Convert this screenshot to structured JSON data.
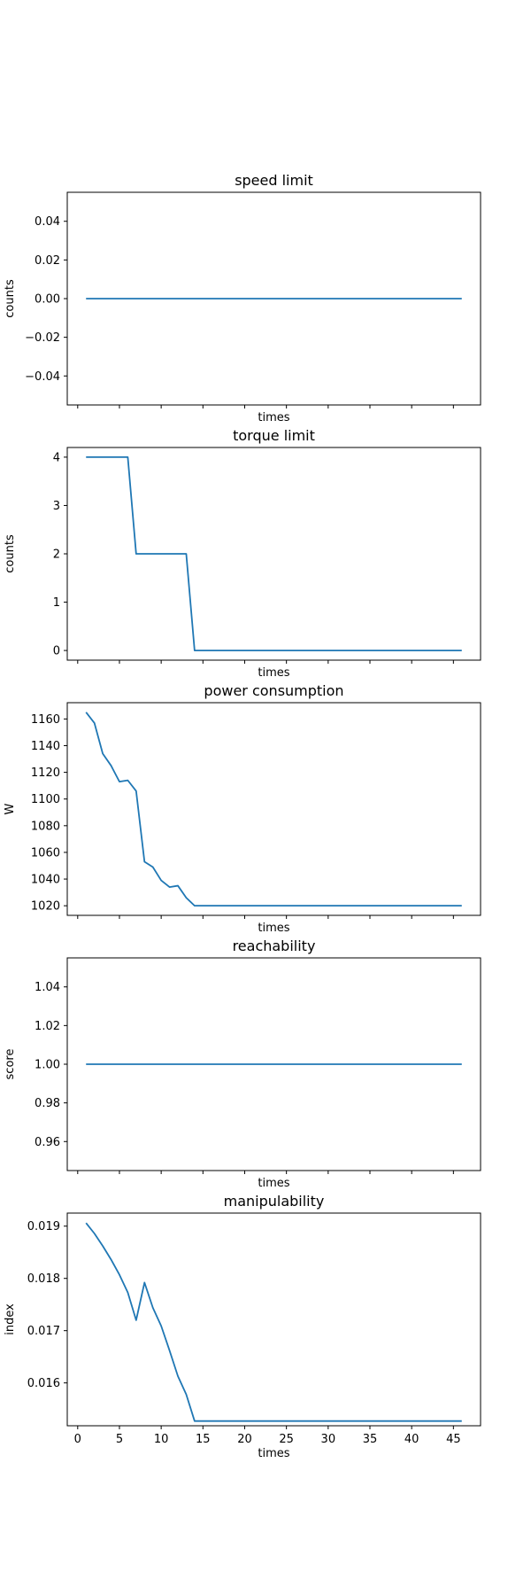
{
  "series_color": "#1f77b4",
  "shared_x": {
    "xlim": [
      -1.25,
      48.25
    ],
    "xticks": [
      0,
      5,
      10,
      15,
      20,
      25,
      30,
      35,
      40,
      45
    ]
  },
  "chart_data": [
    {
      "type": "line",
      "title": "speed limit",
      "xlabel": "times",
      "ylabel": "counts",
      "ylim": [
        -0.055,
        0.055
      ],
      "yticks": [
        -0.04,
        -0.02,
        0.0,
        0.02,
        0.04
      ],
      "ytick_labels": [
        "−0.04",
        "−0.02",
        "0.00",
        "0.02",
        "0.04"
      ],
      "show_xtick_labels": false,
      "x": [
        1,
        2,
        3,
        4,
        5,
        6,
        7,
        8,
        9,
        10,
        11,
        12,
        13,
        14,
        15,
        16,
        17,
        18,
        19,
        20,
        21,
        22,
        23,
        24,
        25,
        26,
        27,
        28,
        29,
        30,
        31,
        32,
        33,
        34,
        35,
        36,
        37,
        38,
        39,
        40,
        41,
        42,
        43,
        44,
        45,
        46
      ],
      "y": [
        0,
        0,
        0,
        0,
        0,
        0,
        0,
        0,
        0,
        0,
        0,
        0,
        0,
        0,
        0,
        0,
        0,
        0,
        0,
        0,
        0,
        0,
        0,
        0,
        0,
        0,
        0,
        0,
        0,
        0,
        0,
        0,
        0,
        0,
        0,
        0,
        0,
        0,
        0,
        0,
        0,
        0,
        0,
        0,
        0,
        0
      ]
    },
    {
      "type": "line",
      "title": "torque limit",
      "xlabel": "times",
      "ylabel": "counts",
      "ylim": [
        -0.2,
        4.2
      ],
      "yticks": [
        0,
        1,
        2,
        3,
        4
      ],
      "ytick_labels": [
        "0",
        "1",
        "2",
        "3",
        "4"
      ],
      "show_xtick_labels": false,
      "x": [
        1,
        2,
        3,
        4,
        5,
        6,
        7,
        8,
        9,
        10,
        11,
        12,
        13,
        14,
        15,
        16,
        17,
        18,
        19,
        20,
        21,
        22,
        23,
        24,
        25,
        26,
        27,
        28,
        29,
        30,
        31,
        32,
        33,
        34,
        35,
        36,
        37,
        38,
        39,
        40,
        41,
        42,
        43,
        44,
        45,
        46
      ],
      "y": [
        4,
        4,
        4,
        4,
        4,
        4,
        2,
        2,
        2,
        2,
        2,
        2,
        2,
        0,
        0,
        0,
        0,
        0,
        0,
        0,
        0,
        0,
        0,
        0,
        0,
        0,
        0,
        0,
        0,
        0,
        0,
        0,
        0,
        0,
        0,
        0,
        0,
        0,
        0,
        0,
        0,
        0,
        0,
        0,
        0,
        0
      ]
    },
    {
      "type": "line",
      "title": "power consumption",
      "xlabel": "times",
      "ylabel": "W",
      "ylim": [
        1012.8,
        1172.2
      ],
      "yticks": [
        1020,
        1040,
        1060,
        1080,
        1100,
        1120,
        1140,
        1160
      ],
      "ytick_labels": [
        "1020",
        "1040",
        "1060",
        "1080",
        "1100",
        "1120",
        "1140",
        "1160"
      ],
      "show_xtick_labels": false,
      "x": [
        1,
        2,
        3,
        4,
        5,
        6,
        7,
        8,
        9,
        10,
        11,
        12,
        13,
        14,
        15,
        16,
        17,
        18,
        19,
        20,
        21,
        22,
        23,
        24,
        25,
        26,
        27,
        28,
        29,
        30,
        31,
        32,
        33,
        34,
        35,
        36,
        37,
        38,
        39,
        40,
        41,
        42,
        43,
        44,
        45,
        46
      ],
      "y": [
        1165,
        1157,
        1134,
        1125,
        1113,
        1114,
        1106,
        1053,
        1049,
        1039,
        1034,
        1035,
        1026,
        1020,
        1020,
        1020,
        1020,
        1020,
        1020,
        1020,
        1020,
        1020,
        1020,
        1020,
        1020,
        1020,
        1020,
        1020,
        1020,
        1020,
        1020,
        1020,
        1020,
        1020,
        1020,
        1020,
        1020,
        1020,
        1020,
        1020,
        1020,
        1020,
        1020,
        1020,
        1020,
        1020
      ]
    },
    {
      "type": "line",
      "title": "reachability",
      "xlabel": "times",
      "ylabel": "score",
      "ylim": [
        0.945,
        1.055
      ],
      "yticks": [
        0.96,
        0.98,
        1.0,
        1.02,
        1.04
      ],
      "ytick_labels": [
        "0.96",
        "0.98",
        "1.00",
        "1.02",
        "1.04"
      ],
      "show_xtick_labels": false,
      "x": [
        1,
        2,
        3,
        4,
        5,
        6,
        7,
        8,
        9,
        10,
        11,
        12,
        13,
        14,
        15,
        16,
        17,
        18,
        19,
        20,
        21,
        22,
        23,
        24,
        25,
        26,
        27,
        28,
        29,
        30,
        31,
        32,
        33,
        34,
        35,
        36,
        37,
        38,
        39,
        40,
        41,
        42,
        43,
        44,
        45,
        46
      ],
      "y": [
        1,
        1,
        1,
        1,
        1,
        1,
        1,
        1,
        1,
        1,
        1,
        1,
        1,
        1,
        1,
        1,
        1,
        1,
        1,
        1,
        1,
        1,
        1,
        1,
        1,
        1,
        1,
        1,
        1,
        1,
        1,
        1,
        1,
        1,
        1,
        1,
        1,
        1,
        1,
        1,
        1,
        1,
        1,
        1,
        1,
        1
      ]
    },
    {
      "type": "line",
      "title": "manipulability",
      "xlabel": "times",
      "ylabel": "index",
      "ylim": [
        0.01518,
        0.01925
      ],
      "yticks": [
        0.016,
        0.017,
        0.018,
        0.019
      ],
      "ytick_labels": [
        "0.016",
        "0.017",
        "0.018",
        "0.019"
      ],
      "show_xtick_labels": true,
      "x": [
        1,
        2,
        3,
        4,
        5,
        6,
        7,
        8,
        9,
        10,
        11,
        12,
        13,
        14,
        15,
        16,
        17,
        18,
        19,
        20,
        21,
        22,
        23,
        24,
        25,
        26,
        27,
        28,
        29,
        30,
        31,
        32,
        33,
        34,
        35,
        36,
        37,
        38,
        39,
        40,
        41,
        42,
        43,
        44,
        45,
        46
      ],
      "y": [
        0.01906,
        0.01886,
        0.01862,
        0.01836,
        0.01807,
        0.01773,
        0.0172,
        0.01792,
        0.01744,
        0.01709,
        0.01662,
        0.01613,
        0.01578,
        0.01527,
        0.01527,
        0.01527,
        0.01527,
        0.01527,
        0.01527,
        0.01527,
        0.01527,
        0.01527,
        0.01527,
        0.01527,
        0.01527,
        0.01527,
        0.01527,
        0.01527,
        0.01527,
        0.01527,
        0.01527,
        0.01527,
        0.01527,
        0.01527,
        0.01527,
        0.01527,
        0.01527,
        0.01527,
        0.01527,
        0.01527,
        0.01527,
        0.01527,
        0.01527,
        0.01527,
        0.01527,
        0.01527
      ]
    }
  ]
}
